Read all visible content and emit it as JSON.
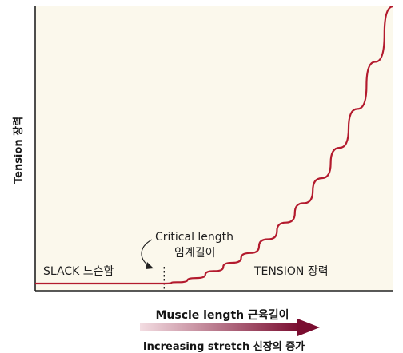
{
  "chart_data": {
    "type": "line",
    "title": "",
    "xlabel": "Muscle length 근육길이",
    "ylabel": "Tension 장력",
    "sublabel": "Increasing stretch 신장의 증가",
    "grid": false,
    "legend": "none",
    "ticks": "none",
    "xlim": [
      0,
      1
    ],
    "ylim": [
      0,
      1
    ],
    "series": [
      {
        "color": "#b31b2e",
        "x": [
          0.0,
          0.36,
          0.4,
          0.45,
          0.5,
          0.55,
          0.6,
          0.65,
          0.7,
          0.75,
          0.8,
          0.85,
          0.9,
          0.95,
          1.0
        ],
        "y": [
          0.0,
          0.0,
          0.005,
          0.02,
          0.045,
          0.075,
          0.11,
          0.16,
          0.22,
          0.29,
          0.38,
          0.49,
          0.63,
          0.8,
          1.0
        ]
      }
    ],
    "annotations": {
      "critical_point_x": 0.36,
      "critical_label": "Critical length",
      "critical_label_kr": "임계길이",
      "slack_label": "SLACK 느슨함",
      "tension_label": "TENSION 장력"
    }
  },
  "colors": {
    "plot_background": "#fbf8ec",
    "axis": "#222222",
    "curve": "#b31b2e",
    "arrow_start": "#f3dde2",
    "arrow_end": "#7a0d30"
  }
}
